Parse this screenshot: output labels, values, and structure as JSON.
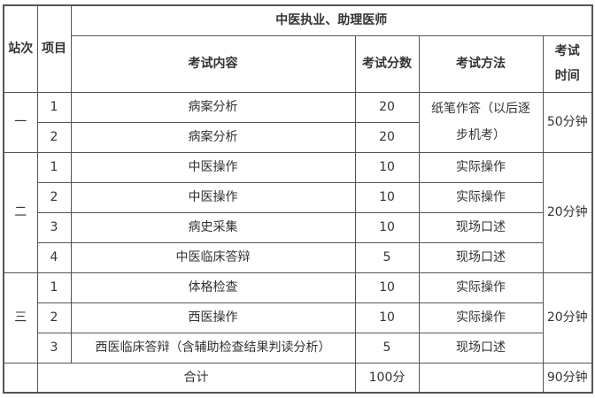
{
  "header": {
    "station": "站次",
    "item": "项目",
    "group_title": "中医执业、助理医师",
    "content": "考试内容",
    "score": "考试分数",
    "method": "考试方法",
    "time": "考试时间"
  },
  "stations": [
    {
      "label": "一",
      "time": "50分钟",
      "method_merged": "纸笔作答（以后逐步机考）",
      "rows": [
        {
          "item": "1",
          "content": "病案分析",
          "score": "20"
        },
        {
          "item": "2",
          "content": "病案分析",
          "score": "20"
        }
      ]
    },
    {
      "label": "二",
      "time": "20分钟",
      "rows": [
        {
          "item": "1",
          "content": "中医操作",
          "score": "10",
          "method": "实际操作"
        },
        {
          "item": "2",
          "content": "中医操作",
          "score": "10",
          "method": "实际操作"
        },
        {
          "item": "3",
          "content": "病史采集",
          "score": "10",
          "method": "现场口述"
        },
        {
          "item": "4",
          "content": "中医临床答辩",
          "score": "5",
          "method": "现场口述"
        }
      ]
    },
    {
      "label": "三",
      "time": "20分钟",
      "rows": [
        {
          "item": "1",
          "content": "体格检查",
          "score": "10",
          "method": "实际操作"
        },
        {
          "item": "2",
          "content": "西医操作",
          "score": "10",
          "method": "实际操作"
        },
        {
          "item": "3",
          "content": "西医临床答辩（含辅助检查结果判读分析）",
          "score": "5",
          "method": "现场口述"
        }
      ]
    }
  ],
  "total": {
    "label": "合计",
    "score": "100分",
    "time": "90分钟"
  }
}
